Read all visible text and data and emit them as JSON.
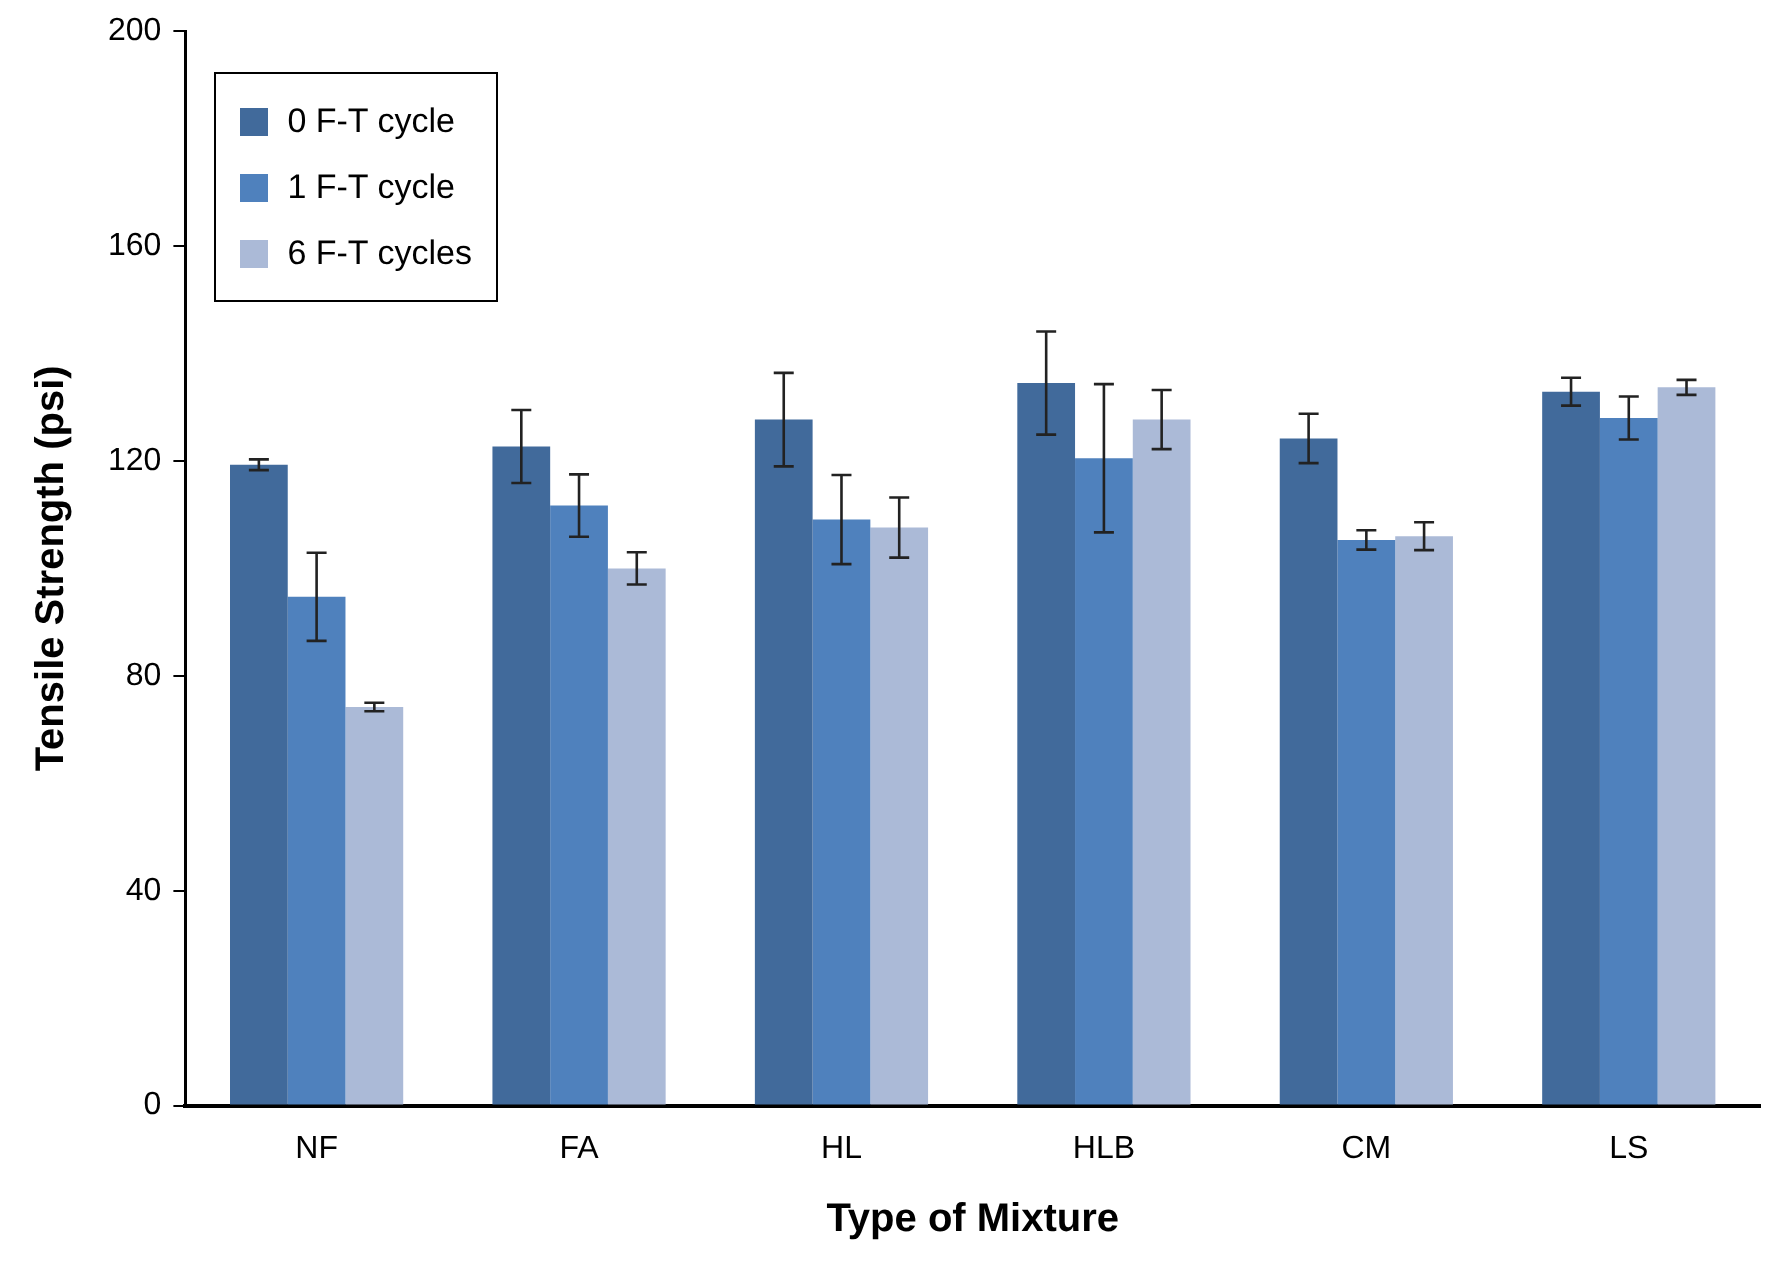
{
  "chart_data": {
    "type": "bar",
    "xlabel": "Type of Mixture",
    "ylabel": "Tensile Strength (psi)",
    "categories": [
      "NF",
      "FA",
      "HL",
      "HLB",
      "CM",
      "LS"
    ],
    "series": [
      {
        "name": "0 F-T cycle",
        "color": "#416a9b",
        "values": [
          119.3,
          122.7,
          127.7,
          134.5,
          124.2,
          132.9
        ],
        "errors": [
          1,
          6.8,
          8.7,
          9.6,
          4.6,
          2.6
        ]
      },
      {
        "name": "1 F-T cycle",
        "color": "#4f81bd",
        "values": [
          94.7,
          111.7,
          109.1,
          120.5,
          105.3,
          128
        ],
        "errors": [
          8.2,
          5.8,
          8.3,
          13.8,
          1.8,
          4
        ]
      },
      {
        "name": "6 F-T cycles",
        "color": "#abbad7",
        "values": [
          74.2,
          100,
          107.6,
          127.7,
          106,
          133.7
        ],
        "errors": [
          0.8,
          3,
          5.6,
          5.5,
          2.6,
          1.4
        ]
      }
    ],
    "ylim": [
      0,
      200
    ],
    "yticks": [
      0,
      40,
      80,
      120,
      160,
      200
    ],
    "grid": false,
    "legend": "top left"
  }
}
